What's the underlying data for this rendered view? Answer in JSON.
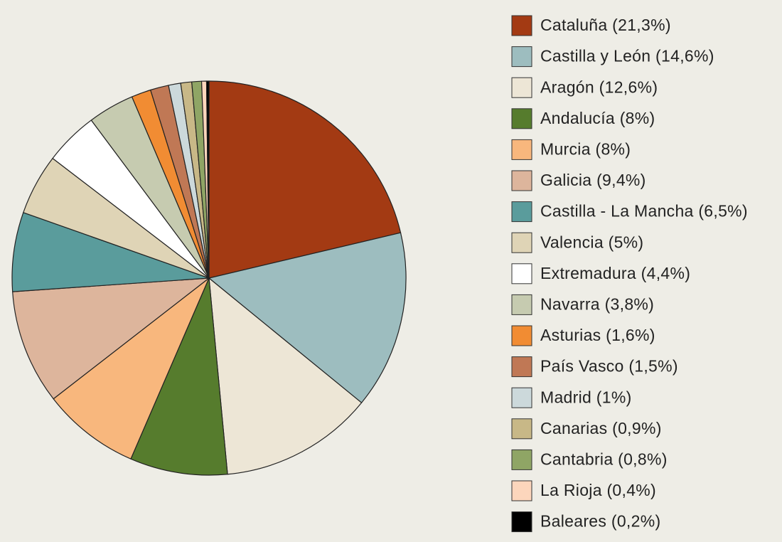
{
  "chart_data": {
    "type": "pie",
    "categories": [
      "Cataluña (21,3%)",
      "Castilla y León (14,6%)",
      "Aragón (12,6%)",
      "Andalucía (8%)",
      "Murcia (8%)",
      "Galicia (9,4%)",
      "Castilla - La Mancha (6,5%)",
      "Valencia (5%)",
      "Extremadura (4,4%)",
      "Navarra (3,8%)",
      "Asturias (1,6%)",
      "País Vasco (1,5%)",
      "Madrid (1%)",
      "Canarias (0,9%)",
      "Cantabria (0,8%)",
      "La Rioja (0,4%)",
      "Baleares (0,2%)"
    ],
    "values": [
      21.3,
      14.6,
      12.6,
      8,
      8,
      9.4,
      6.5,
      5,
      4.4,
      3.8,
      1.6,
      1.5,
      1,
      0.9,
      0.8,
      0.4,
      0.2
    ],
    "colors": [
      "#a33a13",
      "#9dbdbf",
      "#ede6d6",
      "#567c2d",
      "#f8b77d",
      "#ddb59c",
      "#5a9c9c",
      "#dfd4b6",
      "#ffffff",
      "#c6cbb0",
      "#f18c33",
      "#c07855",
      "#ccd9db",
      "#c8b887",
      "#8fa565",
      "#fcd6bc",
      "#000000"
    ],
    "legend": "right"
  }
}
